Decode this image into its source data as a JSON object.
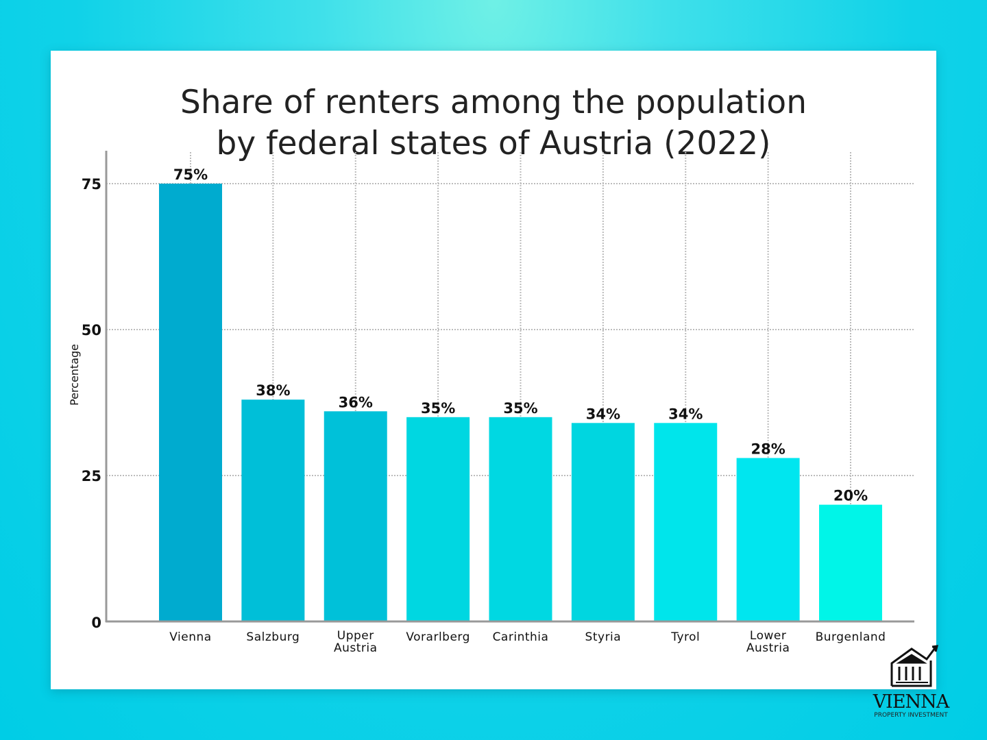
{
  "chart_data": {
    "type": "bar",
    "title": [
      "Share of renters among the population",
      "by federal states of Austria (2022)"
    ],
    "xlabel": "",
    "ylabel": "Percentage",
    "ylim": [
      0,
      75
    ],
    "yticks": [
      0,
      25,
      50,
      75
    ],
    "grid": true,
    "categories": [
      [
        "Vienna"
      ],
      [
        "Salzburg"
      ],
      [
        "Upper",
        "Austria"
      ],
      [
        "Vorarlberg"
      ],
      [
        "Carinthia"
      ],
      [
        "Styria"
      ],
      [
        "Tyrol"
      ],
      [
        "Lower",
        "Austria"
      ],
      [
        "Burgenland"
      ]
    ],
    "values": [
      75,
      38,
      36,
      35,
      35,
      34,
      34,
      28,
      20
    ],
    "data_labels": [
      "75%",
      "38%",
      "36%",
      "35%",
      "35%",
      "34%",
      "34%",
      "28%",
      "20%"
    ],
    "colors": [
      "#00abcf",
      "#00bfd8",
      "#00c1d9",
      "#00d7e1",
      "#00d8e2",
      "#00d6e0",
      "#00e5eb",
      "#00e6ef",
      "#00f5e8"
    ]
  },
  "logo": {
    "name": "VIENNA",
    "tagline": "PROPERTY INVESTMENT"
  }
}
